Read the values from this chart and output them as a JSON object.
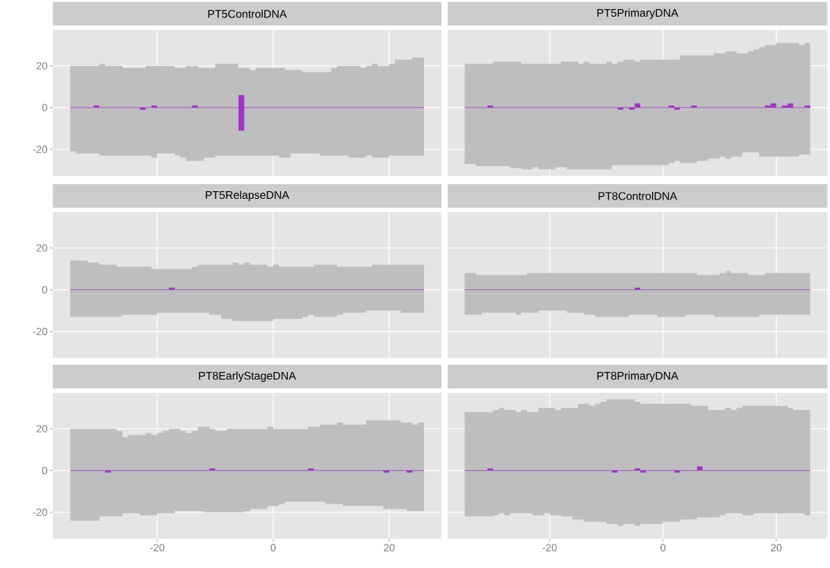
{
  "chart_data": [
    {
      "type": "bar",
      "title": "PT5ControlDNA",
      "xlim": [
        -38,
        29
      ],
      "ylim": [
        -32.7,
        37.2
      ],
      "xticks": [
        -20,
        0,
        20
      ],
      "yticks": [
        -20,
        0,
        20
      ],
      "grid": true,
      "tick_labels": "y",
      "series": [
        {
          "type": "step",
          "color": "#a033c8",
          "x": [
            -35,
            -34,
            -30,
            -29,
            -26,
            -22,
            -21,
            -20,
            -17,
            -16,
            -15,
            -13,
            -12,
            -10,
            -6,
            -4,
            -3,
            1,
            2,
            3,
            5,
            8,
            10,
            11,
            13,
            15,
            16,
            17,
            18,
            20,
            21,
            24,
            26
          ],
          "values": [
            0,
            0,
            0,
            0,
            0,
            0,
            0,
            0,
            0,
            0,
            0,
            0,
            0,
            0,
            0,
            0,
            0,
            0,
            0,
            0,
            0,
            0,
            0,
            0,
            0,
            0,
            0,
            0,
            0,
            0,
            0,
            0,
            0
          ],
          "upper": [
            20,
            20,
            21,
            20,
            19,
            20,
            20,
            20,
            19,
            19,
            20,
            19,
            19,
            21,
            19,
            18,
            19,
            19,
            18,
            18,
            17,
            17,
            19,
            20,
            20,
            19,
            20,
            21,
            20,
            21,
            23,
            24,
            24
          ],
          "lower": [
            -21,
            -22,
            -23,
            -23,
            -23,
            -23,
            -24,
            -22,
            -23,
            -24,
            -25.5,
            -25.5,
            -24,
            -23,
            -23,
            -23,
            -23,
            -24,
            -24,
            -22,
            -22,
            -23,
            -23,
            -23,
            -24,
            -24,
            -23,
            -24,
            -24,
            -23,
            -23,
            -23,
            -23
          ]
        },
        {
          "color": "#a033c8",
          "x": [
            -30.5,
            -22.5,
            -20.5,
            -13.5,
            -5.5
          ],
          "base": [
            0,
            0,
            0,
            0,
            -11
          ],
          "values": [
            1,
            -1,
            1,
            1,
            17
          ]
        }
      ]
    },
    {
      "type": "bar",
      "title": "PT5PrimaryDNA",
      "xlim": [
        -38,
        29
      ],
      "ylim": [
        -32.7,
        37.2
      ],
      "xticks": [
        -20,
        0,
        20
      ],
      "yticks": [
        -20,
        0,
        20
      ],
      "grid": true,
      "tick_labels": false,
      "series": [
        {
          "type": "step",
          "color": "#a033c8",
          "x": [
            -35,
            -33,
            -30,
            -27,
            -25,
            -23,
            -22,
            -19,
            -18,
            -17,
            -15,
            -14,
            -13,
            -10,
            -9,
            -8,
            -7,
            -5,
            -4,
            1,
            2,
            3,
            6,
            8,
            9,
            10,
            11,
            12,
            13,
            14,
            15,
            16,
            17,
            18,
            20,
            24,
            25,
            26
          ],
          "values": [
            0,
            0,
            0,
            0,
            0,
            0,
            0,
            0,
            0,
            0,
            0,
            0,
            0,
            0,
            0,
            0,
            0,
            0,
            0,
            0,
            0,
            0,
            0,
            0,
            0,
            0,
            0,
            0,
            0,
            0,
            0,
            0,
            0,
            0,
            0,
            0,
            0,
            0
          ],
          "upper": [
            21,
            21,
            22,
            22,
            21,
            21,
            21,
            21,
            22,
            22,
            21,
            22,
            21,
            22,
            21,
            22,
            23,
            22,
            23,
            23,
            23,
            25,
            25,
            25,
            26,
            26,
            27,
            27,
            26,
            26,
            27,
            28,
            29,
            30,
            31,
            30,
            31,
            31
          ],
          "lower": [
            -27,
            -28,
            -28,
            -29,
            -29.5,
            -28.5,
            -29.5,
            -28.5,
            -28.5,
            -29.5,
            -29.5,
            -29.5,
            -29.5,
            -29.5,
            -27.5,
            -27.5,
            -27.5,
            -27.5,
            -27.5,
            -26.5,
            -25.5,
            -26.5,
            -25.5,
            -24.5,
            -24.5,
            -23.5,
            -24.5,
            -23.5,
            -23.5,
            -21.5,
            -21.5,
            -21.5,
            -23.5,
            -23.5,
            -23.5,
            -22.5,
            -22.5,
            -22.5
          ]
        },
        {
          "color": "#a033c8",
          "x": [
            -30.5,
            -7.5,
            -5.5,
            -4.5,
            1.5,
            2.5,
            5.5,
            18.5,
            19.5,
            21.5,
            22.5,
            25.5
          ],
          "values": [
            1,
            -1,
            -1,
            2,
            1,
            -1,
            1,
            1,
            2,
            1,
            2,
            1
          ]
        }
      ]
    },
    {
      "type": "bar",
      "title": "PT5RelapseDNA",
      "xlim": [
        -38,
        29
      ],
      "ylim": [
        -32.7,
        37.2
      ],
      "xticks": [
        -20,
        0,
        20
      ],
      "yticks": [
        -20,
        0,
        20
      ],
      "grid": true,
      "tick_labels": "y",
      "series": [
        {
          "type": "step",
          "color": "#a033c8",
          "x": [
            -35,
            -32,
            -30,
            -27,
            -26,
            -21,
            -20,
            -14,
            -13,
            -11,
            -9,
            -7,
            -6,
            -5,
            -4,
            -1,
            0,
            1,
            5,
            6,
            7,
            11,
            12,
            16,
            17,
            22,
            26
          ],
          "values": [
            0,
            0,
            0,
            0,
            0,
            0,
            0,
            0,
            0,
            0,
            0,
            0,
            0,
            0,
            0,
            0,
            0,
            0,
            0,
            0,
            0,
            0,
            0,
            0,
            0,
            0,
            0
          ],
          "upper": [
            14,
            13,
            12,
            11,
            11,
            10,
            10,
            11,
            12,
            12,
            12,
            13,
            12,
            13,
            12,
            11,
            12,
            11,
            11,
            11,
            12,
            11,
            11,
            11,
            12,
            12,
            12
          ],
          "lower": [
            -13,
            -13,
            -13,
            -13,
            -12,
            -12,
            -11,
            -11,
            -11,
            -12,
            -14,
            -15,
            -15,
            -15,
            -15,
            -15,
            -14,
            -14,
            -13,
            -12,
            -13,
            -12,
            -11,
            -10,
            -10,
            -11,
            -11
          ]
        },
        {
          "color": "#a033c8",
          "x": [
            -17.5
          ],
          "values": [
            1
          ]
        }
      ]
    },
    {
      "type": "bar",
      "title": "PT8ControlDNA",
      "xlim": [
        -38,
        29
      ],
      "ylim": [
        -32.7,
        37.2
      ],
      "xticks": [
        -20,
        0,
        20
      ],
      "yticks": [
        -20,
        0,
        20
      ],
      "grid": true,
      "tick_labels": false,
      "series": [
        {
          "type": "step",
          "color": "#a033c8",
          "x": [
            -35,
            -33,
            -32,
            -26,
            -25,
            -24,
            -22,
            -17,
            -14,
            -12,
            -6,
            -1,
            4,
            6,
            9,
            10,
            11,
            12,
            15,
            17,
            18,
            26
          ],
          "values": [
            0,
            0,
            0,
            0,
            0,
            0,
            0,
            0,
            0,
            0,
            0,
            0,
            0,
            0,
            0,
            0,
            0,
            0,
            0,
            0,
            0,
            0
          ],
          "upper": [
            8,
            7,
            7,
            7,
            7,
            8,
            8,
            8,
            8,
            8,
            8,
            8,
            8,
            7,
            7,
            8,
            9,
            8,
            7,
            7,
            8,
            8
          ],
          "lower": [
            -12,
            -12,
            -11,
            -12,
            -11,
            -11,
            -10,
            -11,
            -12,
            -13,
            -12,
            -13,
            -12,
            -12,
            -13,
            -13,
            -13,
            -13,
            -13,
            -12,
            -12,
            -12
          ]
        },
        {
          "color": "#a033c8",
          "x": [
            -4.5
          ],
          "values": [
            1
          ]
        }
      ]
    },
    {
      "type": "bar",
      "title": "PT8EarlyStageDNA",
      "xlim": [
        -38,
        29
      ],
      "ylim": [
        -32.7,
        37.2
      ],
      "xticks": [
        -20,
        0,
        20
      ],
      "yticks": [
        -20,
        0,
        20
      ],
      "grid": true,
      "series": [
        {
          "type": "step",
          "color": "#a033c8",
          "x": [
            -35,
            -30,
            -27,
            -26,
            -25,
            -23,
            -22,
            -21,
            -20,
            -19,
            -18,
            -17,
            -16,
            -15,
            -14,
            -13,
            -12,
            -11,
            -10,
            -8,
            -5,
            -4,
            -1,
            0,
            1,
            2,
            6,
            8,
            9,
            11,
            12,
            16,
            19,
            22,
            23,
            24,
            25,
            26
          ],
          "values": [
            0,
            0,
            0,
            0,
            0,
            0,
            0,
            0,
            0,
            0,
            0,
            0,
            0,
            0,
            0,
            0,
            0,
            0,
            0,
            0,
            0,
            0,
            0,
            0,
            0,
            0,
            0,
            0,
            0,
            0,
            0,
            0,
            0,
            0,
            0,
            0,
            0,
            0
          ],
          "upper": [
            20,
            20,
            19,
            16,
            17,
            17,
            18,
            17,
            18,
            19,
            20,
            20,
            19,
            18,
            19,
            21,
            21,
            20,
            19,
            20,
            20,
            20,
            21,
            20,
            20,
            20,
            21,
            22,
            22,
            23,
            22,
            24,
            24,
            23,
            23,
            22,
            23,
            23
          ],
          "lower": [
            -24,
            -22,
            -22,
            -20.5,
            -20.5,
            -21.5,
            -21.5,
            -21.5,
            -20.5,
            -20.5,
            -20.5,
            -19.5,
            -19.5,
            -19.5,
            -19.5,
            -19.5,
            -20,
            -20,
            -20,
            -20,
            -19.5,
            -18.5,
            -17,
            -17,
            -16,
            -15,
            -15,
            -15,
            -16,
            -16,
            -17,
            -17,
            -18.5,
            -18.5,
            -19.5,
            -19.5,
            -19.5,
            -19.5
          ]
        },
        {
          "color": "#a033c8",
          "x": [
            -28.5,
            -10.5,
            6.5,
            19.5,
            23.5
          ],
          "values": [
            -1,
            1,
            1,
            -1,
            -1
          ]
        }
      ]
    },
    {
      "type": "bar",
      "title": "PT8PrimaryDNA",
      "xlim": [
        -38,
        29
      ],
      "ylim": [
        -32.7,
        37.2
      ],
      "xticks": [
        -20,
        0,
        20
      ],
      "yticks": [
        -20,
        0,
        20
      ],
      "grid": true,
      "tick_labels": "x",
      "series": [
        {
          "type": "step",
          "color": "#a033c8",
          "x": [
            -35,
            -30,
            -29,
            -28,
            -27,
            -26,
            -25,
            -24,
            -23,
            -22,
            -21,
            -20,
            -19,
            -18,
            -16,
            -15,
            -14,
            -13,
            -12,
            -11,
            -10,
            -8,
            -7,
            -5,
            -4,
            0,
            3,
            5,
            6,
            8,
            10,
            11,
            12,
            13,
            14,
            16,
            22,
            23,
            25,
            26
          ],
          "values": [
            0,
            0,
            0,
            0,
            0,
            0,
            0,
            0,
            0,
            0,
            0,
            0,
            0,
            0,
            0,
            0,
            0,
            0,
            0,
            0,
            0,
            0,
            0,
            0,
            0,
            0,
            0,
            0,
            0,
            0,
            0,
            0,
            0,
            0,
            0,
            0,
            0,
            0,
            0,
            0
          ],
          "upper": [
            28,
            29,
            30,
            29,
            29,
            28,
            29,
            28,
            28,
            30,
            30,
            30,
            29,
            30,
            30,
            32,
            32,
            31,
            32,
            33,
            34,
            34,
            34,
            33,
            32,
            32,
            32,
            31,
            31,
            29,
            29,
            30,
            29,
            30,
            31,
            31,
            30,
            29,
            29,
            29
          ],
          "lower": [
            -22,
            -21.5,
            -20.5,
            -21.5,
            -20.5,
            -20.5,
            -20.5,
            -20.5,
            -21.5,
            -21.5,
            -20.5,
            -21.5,
            -21.5,
            -22,
            -23.5,
            -23.5,
            -24.5,
            -24.5,
            -24.5,
            -24.5,
            -25.5,
            -26.5,
            -25.5,
            -26.5,
            -25.5,
            -24.5,
            -23.5,
            -23.5,
            -22.5,
            -22.5,
            -21.5,
            -20.5,
            -20.5,
            -20.5,
            -21.5,
            -20.5,
            -20.5,
            -20.5,
            -21.5,
            -21.5
          ]
        },
        {
          "color": "#a033c8",
          "x": [
            -30.5,
            -8.5,
            -4.5,
            -3.5,
            2.5,
            6.5
          ],
          "values": [
            1,
            -1,
            1,
            -1,
            -1,
            2
          ]
        }
      ]
    }
  ]
}
